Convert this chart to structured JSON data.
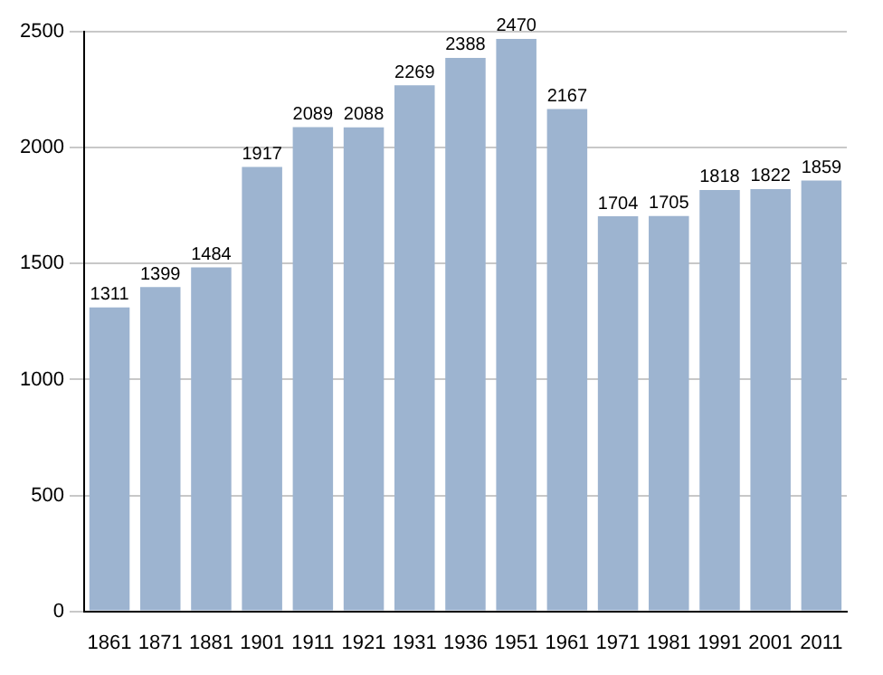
{
  "chart_data": {
    "type": "bar",
    "categories": [
      "1861",
      "1871",
      "1881",
      "1901",
      "1911",
      "1921",
      "1931",
      "1936",
      "1951",
      "1961",
      "1971",
      "1981",
      "1991",
      "2001",
      "2011"
    ],
    "values": [
      1311,
      1399,
      1484,
      1917,
      2089,
      2088,
      2269,
      2388,
      2470,
      2167,
      1704,
      1705,
      1818,
      1822,
      1859
    ],
    "color": "#9db4d0",
    "ylim": [
      0,
      2500
    ],
    "yticks": [
      0,
      500,
      1000,
      1500,
      2000,
      2500
    ],
    "grid": "y",
    "data_labels": true
  }
}
